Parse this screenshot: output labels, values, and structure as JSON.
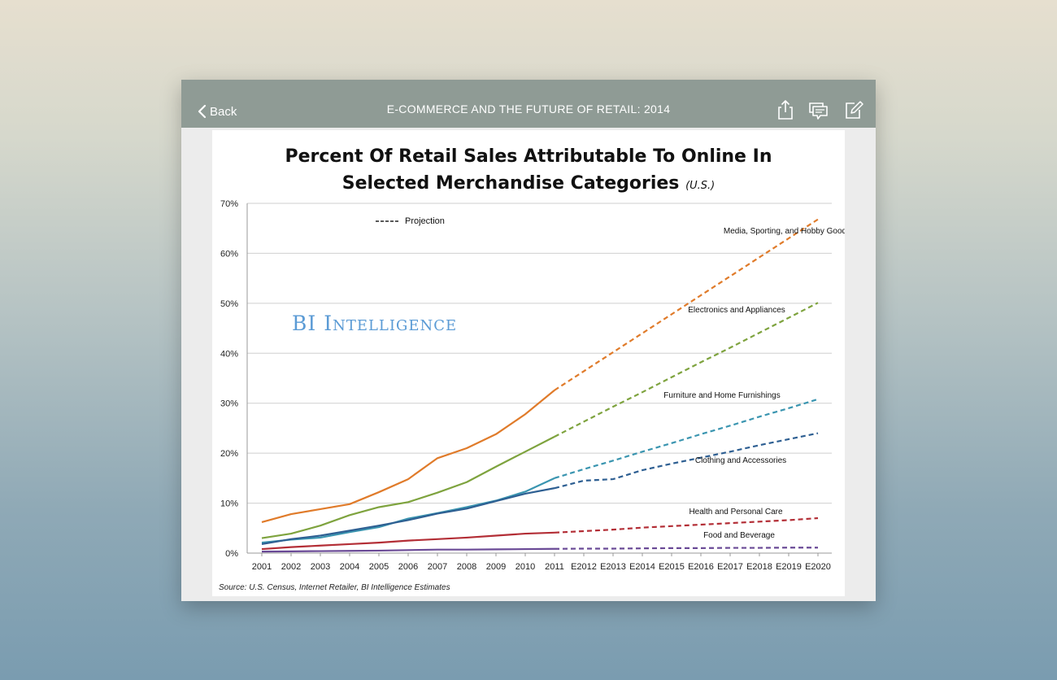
{
  "app": {
    "back_label": "Back",
    "title": "E-COMMERCE AND THE FUTURE OF RETAIL: 2014",
    "icons": [
      "chevron-left-icon",
      "share-icon",
      "comment-icon",
      "edit-icon"
    ],
    "colors": {
      "topbar": "#8f9b95"
    }
  },
  "chart_data": {
    "type": "line",
    "title_line1": "Percent Of Retail Sales Attributable To Online In",
    "title_line2": "Selected Merchandise Categories",
    "title_sub": "(U.S.)",
    "watermark": "BI Intelligence",
    "legend_label": "Projection",
    "source": "Source: U.S. Census, Internet Retailer, BI Intelligence Estimates",
    "categories": [
      "2001",
      "2002",
      "2003",
      "2004",
      "2005",
      "2006",
      "2007",
      "2008",
      "2009",
      "2010",
      "2011",
      "E2012",
      "E2013",
      "E2014",
      "E2015",
      "E2016",
      "E2017",
      "E2018",
      "E2019",
      "E2020"
    ],
    "yticks": [
      "0%",
      "10%",
      "20%",
      "30%",
      "40%",
      "50%",
      "60%",
      "70%"
    ],
    "ylim": [
      0,
      70
    ],
    "grid": true,
    "actual_through_index": 10,
    "series": [
      {
        "name": "Media, Sporting, and Hobby Goods",
        "color": "#e07b2a",
        "values": [
          6.2,
          7.8,
          8.8,
          9.8,
          12.2,
          14.8,
          19,
          21,
          23.8,
          27.8,
          32.6,
          36.4,
          40.2,
          44,
          47.8,
          51.6,
          55.4,
          59.2,
          63,
          66.8
        ]
      },
      {
        "name": "Electronics and Appliances",
        "color": "#7ea33e",
        "values": [
          3,
          3.9,
          5.5,
          7.6,
          9.2,
          10.2,
          12.1,
          14.2,
          17.3,
          20.3,
          23.3,
          26.3,
          29.3,
          32.2,
          35.2,
          38.2,
          41.1,
          44.1,
          47.1,
          50.1
        ]
      },
      {
        "name": "Furniture and Home Furnishings",
        "color": "#3a95b0",
        "values": [
          2.1,
          2.7,
          3.1,
          4.2,
          5.2,
          6.9,
          8,
          9.2,
          10.5,
          12.3,
          15,
          16.8,
          18.5,
          20.3,
          22,
          23.8,
          25.5,
          27.3,
          29,
          30.8
        ]
      },
      {
        "name": "Clothing and Accessories",
        "color": "#2e5f92",
        "values": [
          1.8,
          2.8,
          3.5,
          4.5,
          5.5,
          6.6,
          7.9,
          8.9,
          10.4,
          11.9,
          13,
          14.5,
          14.8,
          16.6,
          17.9,
          19.1,
          20.3,
          21.6,
          22.8,
          24
        ]
      },
      {
        "name": "Health and Personal Care",
        "color": "#b32e36",
        "values": [
          0.8,
          1.2,
          1.5,
          1.8,
          2.1,
          2.5,
          2.8,
          3.1,
          3.5,
          3.9,
          4.1,
          4.4,
          4.7,
          5.1,
          5.4,
          5.7,
          6,
          6.3,
          6.6,
          7
        ]
      },
      {
        "name": "Food and Beverage",
        "color": "#6a4a96",
        "values": [
          0.3,
          0.35,
          0.4,
          0.45,
          0.5,
          0.6,
          0.7,
          0.7,
          0.75,
          0.8,
          0.85,
          0.9,
          0.9,
          0.95,
          1,
          1,
          1.05,
          1.05,
          1.1,
          1.1
        ]
      }
    ],
    "series_labels": [
      "Media, Sporting, and Hobby Goods",
      "Electronics and Appliances",
      "Furniture and Home Furnishings",
      "Clothing and Accessories",
      "Health and Personal Care",
      "Food and Beverage"
    ]
  }
}
